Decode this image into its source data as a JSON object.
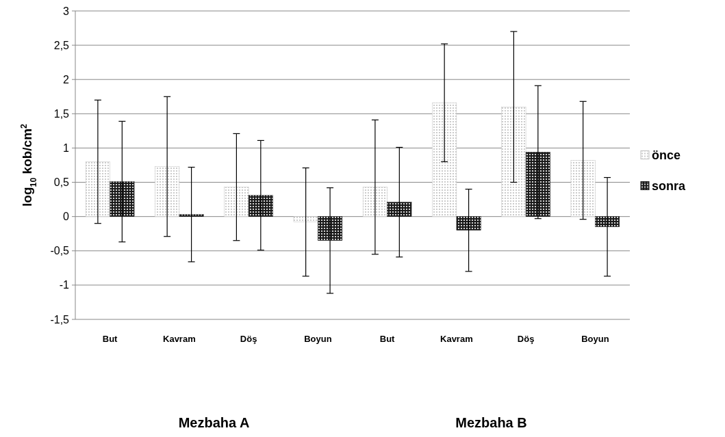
{
  "chart_data": {
    "type": "bar",
    "ylabel": "log$_{10}$  kob/cm$^{2}$",
    "categories": [
      "But",
      "Kavram",
      "Döş",
      "Boyun",
      "But",
      "Kavram",
      "Döş",
      "Boyun"
    ],
    "series": [
      {
        "name": "önce",
        "color": "#bfbfbf",
        "values": [
          0.8,
          0.73,
          0.43,
          -0.08,
          0.43,
          1.66,
          1.6,
          0.82
        ],
        "errors": [
          0.9,
          1.02,
          0.78,
          0.79,
          0.98,
          0.86,
          1.1,
          0.86
        ]
      },
      {
        "name": "sonra",
        "color": "#1a1a1a",
        "values": [
          0.51,
          0.03,
          0.31,
          -0.35,
          0.21,
          -0.2,
          0.94,
          -0.15
        ],
        "errors": [
          0.88,
          0.69,
          0.8,
          0.77,
          0.8,
          0.6,
          0.97,
          0.72
        ]
      }
    ],
    "annotations": [
      "Mezbaha A",
      "Mezbaha B"
    ],
    "ylim": [
      -1.5,
      3
    ],
    "yticks": [
      {
        "value": -1.5,
        "label": "-1,5"
      },
      -1,
      {
        "value": -0.5,
        "label": "-0,5"
      },
      0,
      {
        "value": 0.5,
        "label": "0,5"
      },
      1,
      {
        "value": 1.5,
        "label": "1,5"
      },
      2,
      {
        "value": 2.5,
        "label": "2,5"
      },
      3
    ],
    "grid": "y",
    "legend": "right"
  }
}
